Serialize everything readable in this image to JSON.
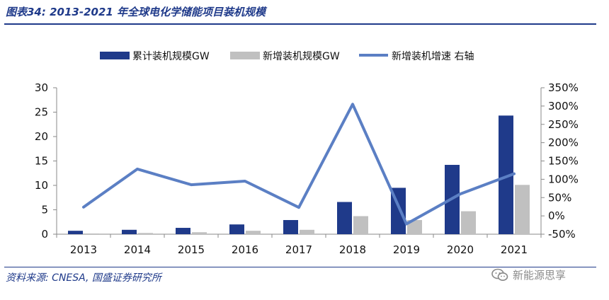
{
  "header": {
    "title": "图表34:  2013-2021 年全球电化学储能项目装机规模"
  },
  "footer": {
    "source": "资料来源:  CNESA,  国盛证券研究所",
    "watermark": "新能源思享"
  },
  "colors": {
    "cumulative": "#1f3a8a",
    "new": "#c0c0c0",
    "growth": "#5b7fc4",
    "text_accent": "#1f3a8a"
  },
  "chart_data": {
    "type": "bar",
    "categories": [
      "2013",
      "2014",
      "2015",
      "2016",
      "2017",
      "2018",
      "2019",
      "2020",
      "2021"
    ],
    "series": [
      {
        "name": "累计装机规模GW",
        "type": "bar",
        "axis": "left",
        "values": [
          0.7,
          0.9,
          1.3,
          2.0,
          2.9,
          6.6,
          9.5,
          14.2,
          24.3
        ]
      },
      {
        "name": "新增装机规模GW",
        "type": "bar",
        "axis": "left",
        "values": [
          0.15,
          0.25,
          0.4,
          0.7,
          0.9,
          3.7,
          2.9,
          4.7,
          10.1
        ]
      },
      {
        "name": "新增装机增速 右轴",
        "type": "line",
        "axis": "right",
        "values": [
          0.24,
          1.28,
          0.85,
          0.95,
          0.23,
          3.05,
          -0.22,
          0.6,
          1.15
        ]
      }
    ],
    "ylim_left": [
      0,
      30
    ],
    "yticks_left": [
      "0",
      "5",
      "10",
      "15",
      "20",
      "25",
      "30"
    ],
    "ylim_right": [
      -0.5,
      3.5
    ],
    "yticks_right": [
      "-50%",
      "0%",
      "50%",
      "100%",
      "150%",
      "200%",
      "250%",
      "300%",
      "350%"
    ],
    "grid": false,
    "legend_position": "top"
  }
}
